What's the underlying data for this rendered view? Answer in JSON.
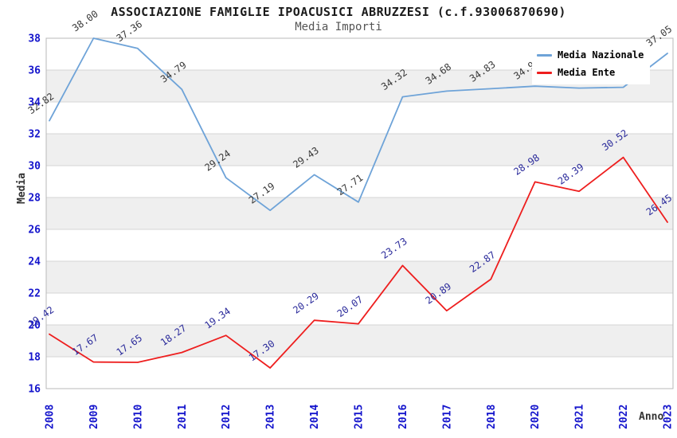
{
  "header": {
    "title": "ASSOCIAZIONE FAMIGLIE IPOACUSICI ABRUZZESI (c.f.93006870690)",
    "subtitle": "Media Importi"
  },
  "legend": {
    "items": [
      {
        "label": "Media Nazionale",
        "color": "#6ea3d8"
      },
      {
        "label": "Media Ente",
        "color": "#ee1e1e"
      }
    ]
  },
  "chart_data": {
    "type": "line",
    "title": "ASSOCIAZIONE FAMIGLIE IPOACUSICI ABRUZZESI (c.f.93006870690)",
    "subtitle": "Media Importi",
    "xlabel": "Anno",
    "ylabel": "Media",
    "categories": [
      "2008",
      "2009",
      "2010",
      "2011",
      "2012",
      "2013",
      "2014",
      "2015",
      "2016",
      "2017",
      "2018",
      "2020",
      "2021",
      "2022",
      "2023"
    ],
    "series": [
      {
        "name": "Media Nazionale",
        "color": "#6ea3d8",
        "label_color": "#3a3a3a",
        "values": [
          32.82,
          38.0,
          37.36,
          34.79,
          29.24,
          27.19,
          29.43,
          27.71,
          34.32,
          34.68,
          34.83,
          34.99,
          34.87,
          34.92,
          37.05
        ]
      },
      {
        "name": "Media Ente",
        "color": "#ee1e1e",
        "label_color": "#2b2b9b",
        "values": [
          19.42,
          17.67,
          17.65,
          18.27,
          19.34,
          17.3,
          20.29,
          20.07,
          23.73,
          20.89,
          22.87,
          28.98,
          28.39,
          30.52,
          26.45
        ]
      }
    ],
    "ylim": [
      16,
      38
    ],
    "yticks": [
      16,
      18,
      20,
      22,
      24,
      26,
      28,
      30,
      32,
      34,
      36,
      38
    ],
    "grid": true,
    "legend_position": "top-right",
    "tick_color": "#1414cc",
    "band_color": "#efefef",
    "grid_color": "#d4d4d4",
    "border_color": "#b8b8b8"
  }
}
